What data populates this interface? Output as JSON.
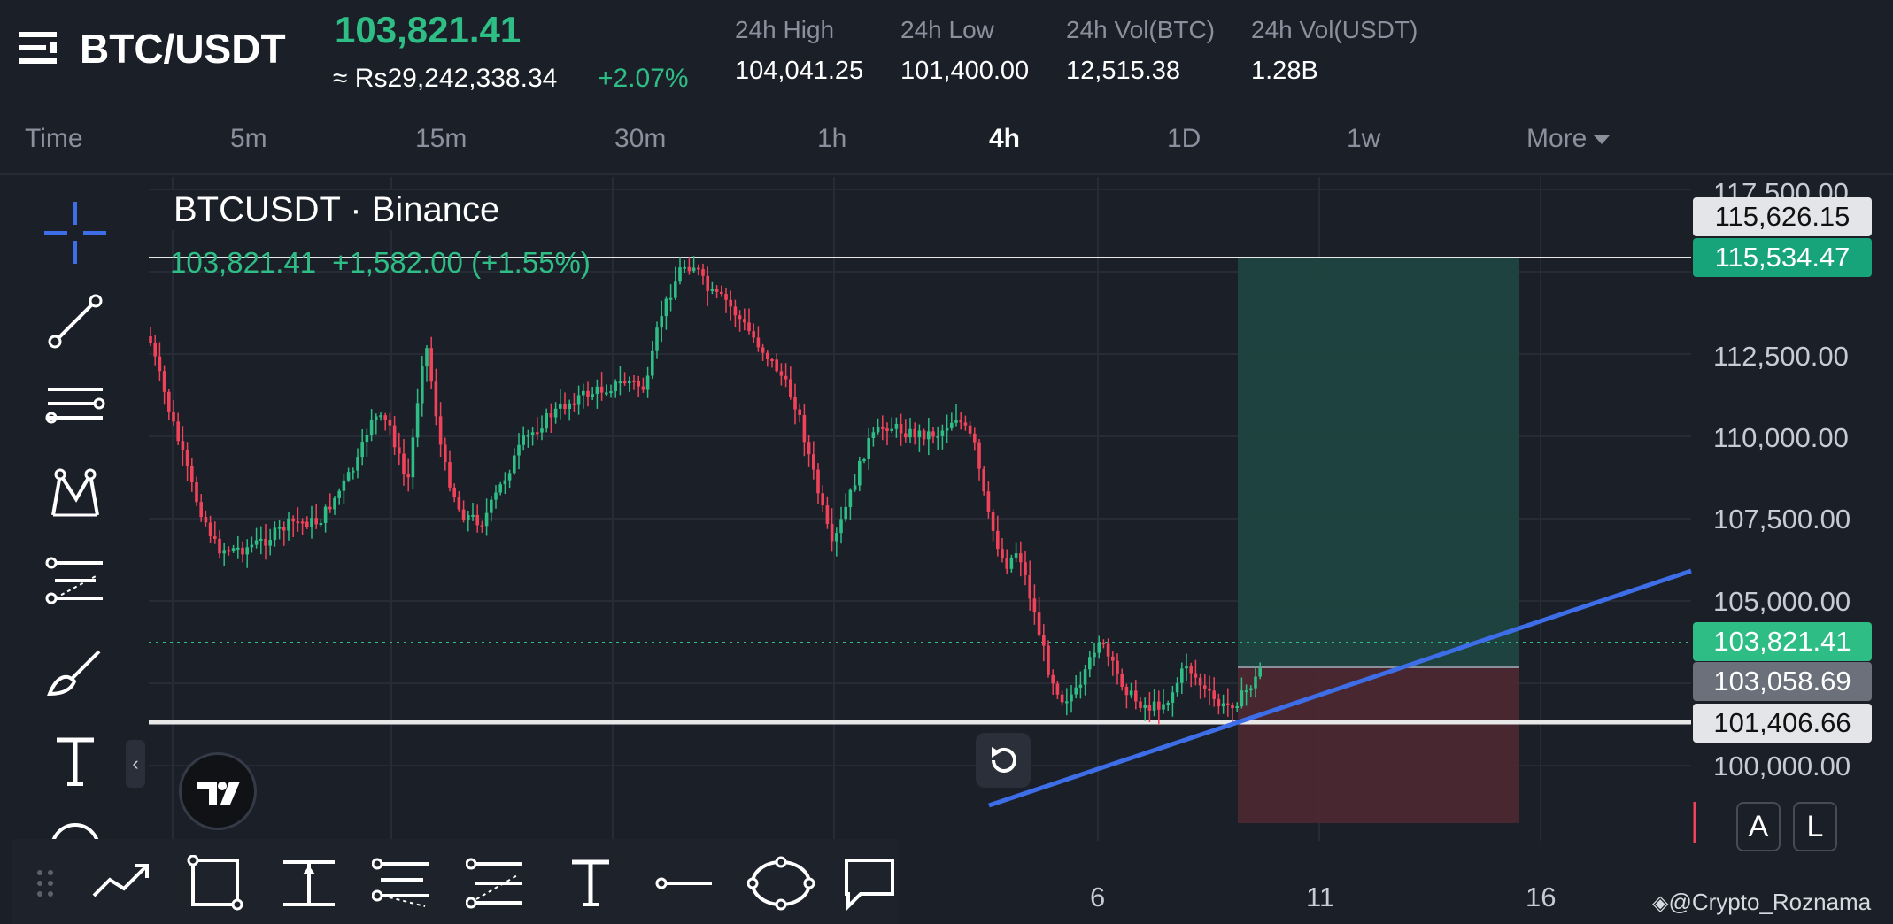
{
  "header": {
    "pair": "BTC/USDT",
    "last_price": "103,821.41",
    "approx_local": "≈ Rs29,242,338.34",
    "change_pct": "+2.07%",
    "stats": [
      {
        "label": "24h High",
        "value": "104,041.25"
      },
      {
        "label": "24h Low",
        "value": "101,400.00"
      },
      {
        "label": "24h Vol(BTC)",
        "value": "12,515.38"
      },
      {
        "label": "24h Vol(USDT)",
        "value": "1.28B"
      }
    ]
  },
  "timeframes": {
    "items": [
      "Time",
      "5m",
      "15m",
      "30m",
      "1h",
      "4h",
      "1D",
      "1w",
      "More"
    ],
    "active": "4h"
  },
  "left_toolbar": {
    "icons": [
      "crosshair-icon",
      "trendline-icon",
      "horizontal-lines-icon",
      "pattern-icon",
      "fib-retracement-icon",
      "brush-icon",
      "text-tool-icon",
      "more-tools-icon"
    ]
  },
  "chart": {
    "symbol_title": "BTCUSDT · Binance",
    "ohlc_price": "103,821.41",
    "ohlc_change": "+1,582.00 (+1.55%)",
    "price_ticks": [
      "117,500.00",
      "112,500.00",
      "110,000.00",
      "107,500.00",
      "105,000.00",
      "100,000.00"
    ],
    "time_ticks": [
      "6",
      "11",
      "16"
    ],
    "price_tags": [
      {
        "value": "115,626.15",
        "style": "light"
      },
      {
        "value": "115,534.47",
        "style": "green"
      },
      {
        "value": "103,821.41",
        "style": "green"
      },
      {
        "value": "103,058.69",
        "style": "gray"
      },
      {
        "value": "101,406.66",
        "style": "light"
      }
    ],
    "scale_buttons": [
      "A",
      "L"
    ],
    "colors": {
      "up": "#2ebd85",
      "down": "#f0435a",
      "trendline": "#3d6ee8",
      "profit_zone": "#1d4540",
      "loss_zone": "#4b2831"
    }
  },
  "bottom_toolbar": {
    "icons": [
      "drag-handle-icon",
      "trend-angle-icon",
      "rectangle-icon",
      "anchored-text-icon",
      "parallel-channel-icon",
      "fib-channel-icon",
      "text-icon",
      "horizontal-ray-icon",
      "ellipse-icon",
      "callout-icon"
    ]
  },
  "watermark": "@Crypto_Roznama"
}
